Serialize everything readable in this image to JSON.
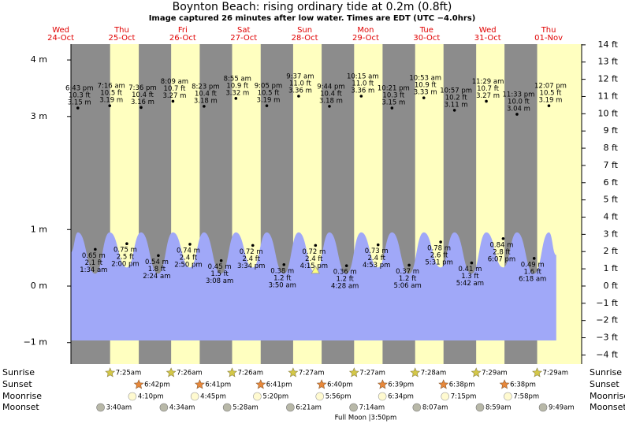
{
  "chart_data": {
    "type": "area",
    "title": "Boynton Beach: rising  ordinary tide at 0.2m (0.8ft)",
    "subtitle": "Image captured 26 minutes after low water. Times are EDT (UTC −4.0hrs)",
    "xlim": [
      16,
      217
    ],
    "ylim": [
      -1.38,
      4.28
    ],
    "yticks": [
      {
        "value": 4,
        "label": "4 m"
      },
      {
        "value": 3,
        "label": "3 m"
      },
      {
        "value": 1,
        "label": "1 m"
      },
      {
        "value": 0,
        "label": "0 m"
      },
      {
        "value": -1,
        "label": "−1 m"
      }
    ],
    "y2lim": [
      -4.53,
      14.04
    ],
    "y2ticks": [
      {
        "value": 14,
        "label": "14 ft"
      },
      {
        "value": 13,
        "label": "13 ft"
      },
      {
        "value": 12,
        "label": "12 ft"
      },
      {
        "value": 11,
        "label": "11 ft"
      },
      {
        "value": 10,
        "label": "10 ft"
      },
      {
        "value": 9,
        "label": "9 ft"
      },
      {
        "value": 8,
        "label": "8 ft"
      },
      {
        "value": 7,
        "label": "7 ft"
      },
      {
        "value": 6,
        "label": "6 ft"
      },
      {
        "value": 5,
        "label": "5 ft"
      },
      {
        "value": 4,
        "label": "4 ft"
      },
      {
        "value": 3,
        "label": "3 ft"
      },
      {
        "value": 2,
        "label": "2 ft"
      },
      {
        "value": 1,
        "label": "1 ft"
      },
      {
        "value": 0,
        "label": "0 ft"
      },
      {
        "value": -1,
        "label": "−1 ft"
      },
      {
        "value": -2,
        "label": "−2 ft"
      },
      {
        "value": -3,
        "label": "−3 ft"
      },
      {
        "value": -4,
        "label": "−4 ft"
      }
    ],
    "night_color": "#8c8c8c",
    "day_color": "#ffffc0",
    "color": "#a0a8f8",
    "tide_curve": {
      "x": [
        16,
        18.72,
        25.57,
        31.27,
        38.0,
        43.6,
        50.4,
        56.15,
        62.83,
        68.38,
        75.13,
        80.92,
        87.57,
        93.08,
        99.83,
        105.62,
        112.25,
        117.73,
        124.47,
        130.25,
        136.88,
        142.35,
        149.1,
        154.88,
        161.52,
        166.95,
        173.7,
        179.48,
        186.12,
        191.55,
        198.3,
        204.12,
        207
      ],
      "values": [
        0.6,
        0.95,
        0.22,
        0.95,
        0.33,
        0.95,
        0.22,
        0.95,
        0.33,
        0.95,
        0.22,
        0.95,
        0.33,
        0.95,
        0.22,
        0.95,
        0.24,
        0.95,
        0.22,
        0.95,
        0.33,
        0.95,
        0.22,
        0.95,
        0.33,
        0.95,
        0.22,
        0.95,
        0.33,
        0.95,
        0.22,
        0.95,
        0.55
      ]
    },
    "row_labels": {
      "sunrise": "Sunrise",
      "sunset": "Sunset",
      "moonrise": "Moonrise",
      "moonset": "Moonset"
    },
    "days": [
      {
        "weekday": "Wed",
        "date": "24-Oct",
        "high": [
          {
            "time": "6:43 pm",
            "ft": "10.3 ft",
            "m": 3.15,
            "m_label": "3.15 m"
          }
        ],
        "low": []
      },
      {
        "weekday": "Thu",
        "date": "25-Oct",
        "sunrise": "7:25am",
        "sunset": "6:42pm",
        "moonrise": "4:10pm",
        "moonset": "3:40am",
        "high": [
          {
            "time": "7:16 am",
            "ft": "10.5 ft",
            "m": 3.19,
            "m_label": "3.19 m"
          },
          {
            "time": "7:36 pm",
            "ft": "10.4 ft",
            "m": 3.16,
            "m_label": "3.16 m"
          }
        ],
        "low": [
          {
            "time": "1:34 am",
            "ft": "2.1 ft",
            "m": 0.65,
            "m_label": "0.65 m"
          },
          {
            "time": "2:00 pm",
            "ft": "2.5 ft",
            "m": 0.75,
            "m_label": "0.75 m"
          }
        ]
      },
      {
        "weekday": "Fri",
        "date": "26-Oct",
        "sunrise": "7:26am",
        "sunset": "6:41pm",
        "moonrise": "4:45pm",
        "moonset": "4:34am",
        "high": [
          {
            "time": "8:09 am",
            "ft": "10.7 ft",
            "m": 3.27,
            "m_label": "3.27 m"
          },
          {
            "time": "8:23 pm",
            "ft": "10.4 ft",
            "m": 3.18,
            "m_label": "3.18 m"
          }
        ],
        "low": [
          {
            "time": "2:24 am",
            "ft": "1.8 ft",
            "m": 0.54,
            "m_label": "0.54 m"
          },
          {
            "time": "2:50 pm",
            "ft": "2.4 ft",
            "m": 0.74,
            "m_label": "0.74 m"
          }
        ]
      },
      {
        "weekday": "Sat",
        "date": "27-Oct",
        "sunrise": "7:26am",
        "sunset": "6:41pm",
        "moonrise": "5:20pm",
        "moonset": "5:28am",
        "high": [
          {
            "time": "8:55 am",
            "ft": "10.9 ft",
            "m": 3.32,
            "m_label": "3.32 m"
          },
          {
            "time": "9:05 pm",
            "ft": "10.5 ft",
            "m": 3.19,
            "m_label": "3.19 m"
          }
        ],
        "low": [
          {
            "time": "3:08 am",
            "ft": "1.5 ft",
            "m": 0.45,
            "m_label": "0.45 m"
          },
          {
            "time": "3:34 pm",
            "ft": "2.4 ft",
            "m": 0.72,
            "m_label": "0.72 m"
          }
        ]
      },
      {
        "weekday": "Sun",
        "date": "28-Oct",
        "sunrise": "7:27am",
        "sunset": "6:40pm",
        "moonrise": "5:56pm",
        "moonset": "6:21am",
        "high": [
          {
            "time": "9:37 am",
            "ft": "11.0 ft",
            "m": 3.36,
            "m_label": "3.36 m"
          },
          {
            "time": "9:44 pm",
            "ft": "10.4 ft",
            "m": 3.18,
            "m_label": "3.18 m"
          }
        ],
        "low": [
          {
            "time": "3:50 am",
            "ft": "1.2 ft",
            "m": 0.38,
            "m_label": "0.38 m"
          },
          {
            "time": "4:15 pm",
            "ft": "2.4 ft",
            "m": 0.72,
            "m_label": "0.72 m"
          }
        ]
      },
      {
        "weekday": "Mon",
        "date": "29-Oct",
        "sunrise": "7:27am",
        "sunset": "6:39pm",
        "moonrise": "6:34pm",
        "moonset": "7:14am",
        "full_moon": "Full Moon |3:50pm",
        "high": [
          {
            "time": "10:15 am",
            "ft": "11.0 ft",
            "m": 3.36,
            "m_label": "3.36 m"
          },
          {
            "time": "10:21 pm",
            "ft": "10.3 ft",
            "m": 3.15,
            "m_label": "3.15 m"
          }
        ],
        "low": [
          {
            "time": "4:28 am",
            "ft": "1.2 ft",
            "m": 0.36,
            "m_label": "0.36 m"
          },
          {
            "time": "4:53 pm",
            "ft": "2.4 ft",
            "m": 0.73,
            "m_label": "0.73 m"
          }
        ]
      },
      {
        "weekday": "Tue",
        "date": "30-Oct",
        "sunrise": "7:28am",
        "sunset": "6:38pm",
        "moonrise": "7:15pm",
        "moonset": "8:07am",
        "high": [
          {
            "time": "10:53 am",
            "ft": "10.9 ft",
            "m": 3.33,
            "m_label": "3.33 m"
          },
          {
            "time": "10:57 pm",
            "ft": "10.2 ft",
            "m": 3.11,
            "m_label": "3.11 m"
          }
        ],
        "low": [
          {
            "time": "5:06 am",
            "ft": "1.2 ft",
            "m": 0.37,
            "m_label": "0.37 m"
          },
          {
            "time": "5:31 pm",
            "ft": "2.6 ft",
            "m": 0.78,
            "m_label": "0.78 m"
          }
        ]
      },
      {
        "weekday": "Wed",
        "date": "31-Oct",
        "sunrise": "7:29am",
        "sunset": "6:38pm",
        "moonrise": "7:58pm",
        "moonset": "8:59am",
        "high": [
          {
            "time": "11:29 am",
            "ft": "10.7 ft",
            "m": 3.27,
            "m_label": "3.27 m"
          },
          {
            "time": "11:33 pm",
            "ft": "10.0 ft",
            "m": 3.04,
            "m_label": "3.04 m"
          }
        ],
        "low": [
          {
            "time": "5:42 am",
            "ft": "1.3 ft",
            "m": 0.41,
            "m_label": "0.41 m"
          },
          {
            "time": "6:07 pm",
            "ft": "2.8 ft",
            "m": 0.84,
            "m_label": "0.84 m"
          }
        ]
      },
      {
        "weekday": "Thu",
        "date": "01-Nov",
        "sunrise": "7:29am",
        "moonset": "9:49am",
        "high": [
          {
            "time": "12:07 pm",
            "ft": "10.5 ft",
            "m": 3.19,
            "m_label": "3.19 m"
          }
        ],
        "low": [
          {
            "time": "6:18 am",
            "ft": "1.6 ft",
            "m": 0.49,
            "m_label": "0.49 m"
          }
        ]
      }
    ]
  }
}
